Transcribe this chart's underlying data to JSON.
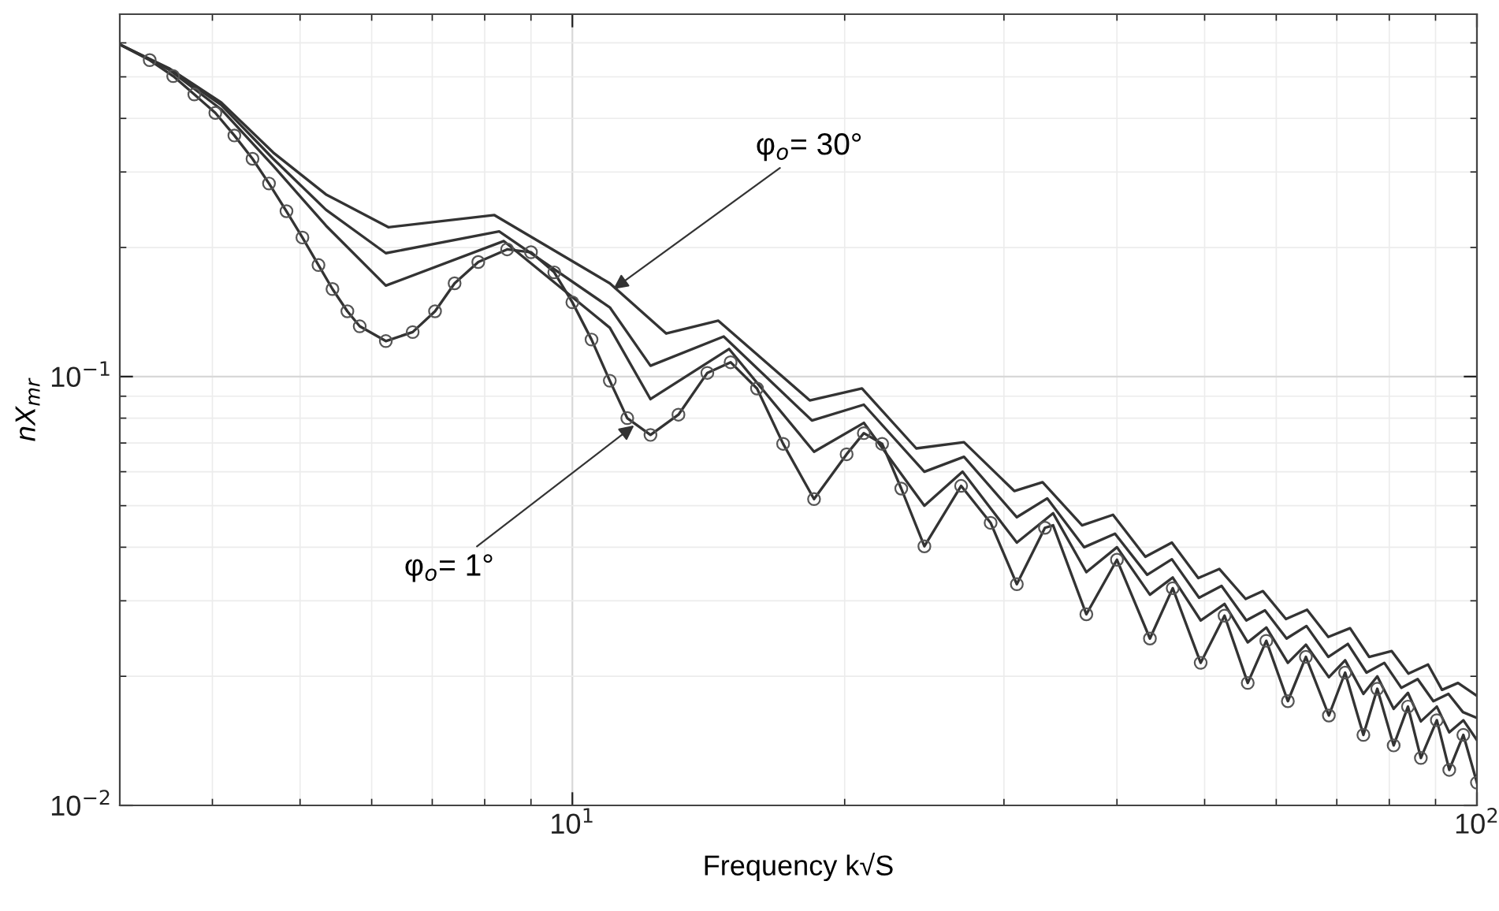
{
  "chart_data": {
    "type": "line",
    "xlabel": "Frequency k√S",
    "ylabel": "nX$_{mr}$",
    "log": "xy",
    "grid": true,
    "legend": false,
    "xlim": [
      3.16,
      100
    ],
    "ylim": [
      0.01,
      0.7
    ],
    "xticks": [
      {
        "value": 10,
        "label": "10$^{1}$"
      },
      {
        "value": 100,
        "label": "10$^{2}$"
      }
    ],
    "yticks": [
      {
        "value": 0.01,
        "label": "10$^{−2}$"
      },
      {
        "value": 0.1,
        "label": "10$^{−1}$"
      }
    ],
    "series": [
      {
        "color": "#333333",
        "marker": "none",
        "x": [
          3.16,
          3.58,
          4.09,
          4.67,
          5.34,
          6.26,
          8.2,
          11.0,
          12.7,
          14.5,
          18.3,
          20.9,
          24.0,
          27.1,
          30.8,
          33.1,
          36.6,
          39.6,
          43.0,
          46.0,
          49.2,
          51.9,
          55.5,
          58.0,
          61.5,
          64.9,
          68.5,
          72.4,
          76.0,
          80.5,
          84.0,
          88.3,
          91.5,
          95.3,
          100
        ],
        "values": [
          0.595,
          0.524,
          0.436,
          0.333,
          0.266,
          0.223,
          0.238,
          0.165,
          0.126,
          0.135,
          0.088,
          0.0938,
          0.068,
          0.0703,
          0.0541,
          0.0567,
          0.045,
          0.0476,
          0.038,
          0.041,
          0.0339,
          0.0356,
          0.0303,
          0.0316,
          0.0272,
          0.0286,
          0.0247,
          0.0259,
          0.0222,
          0.0229,
          0.0203,
          0.0213,
          0.0186,
          0.0193,
          0.018
        ]
      },
      {
        "color": "#333333",
        "marker": "none",
        "x": [
          3.16,
          3.58,
          4.09,
          4.67,
          5.34,
          6.22,
          8.3,
          11.0,
          12.2,
          14.7,
          18.4,
          21.0,
          24.5,
          27.1,
          31.0,
          33.5,
          36.8,
          39.8,
          43.2,
          46.0,
          49.3,
          52.2,
          55.6,
          58.3,
          61.6,
          64.8,
          68.5,
          72.0,
          75.5,
          79.0,
          82.5,
          86.0,
          89.5,
          93.0,
          96.5,
          100
        ],
        "values": [
          0.595,
          0.522,
          0.43,
          0.322,
          0.245,
          0.194,
          0.218,
          0.145,
          0.106,
          0.124,
          0.079,
          0.086,
          0.06,
          0.065,
          0.047,
          0.052,
          0.04,
          0.043,
          0.0345,
          0.0375,
          0.0305,
          0.0325,
          0.027,
          0.0285,
          0.0245,
          0.0262,
          0.0222,
          0.0238,
          0.0204,
          0.0215,
          0.0188,
          0.0197,
          0.0175,
          0.0182,
          0.0165,
          0.016
        ]
      },
      {
        "color": "#333333",
        "marker": "none",
        "x": [
          3.16,
          3.58,
          4.09,
          4.67,
          5.34,
          6.22,
          8.4,
          11.0,
          12.2,
          14.9,
          18.5,
          21.0,
          24.5,
          27.0,
          31.0,
          34.0,
          37.0,
          40.0,
          43.5,
          46.1,
          49.5,
          52.6,
          55.8,
          58.5,
          61.8,
          64.7,
          68.6,
          71.5,
          74.9,
          77.6,
          80.9,
          83.9,
          86.7,
          90.3,
          93.2,
          96.6,
          100
        ],
        "values": [
          0.595,
          0.52,
          0.42,
          0.31,
          0.225,
          0.163,
          0.207,
          0.13,
          0.0886,
          0.116,
          0.0668,
          0.078,
          0.05,
          0.06,
          0.041,
          0.048,
          0.035,
          0.04,
          0.031,
          0.034,
          0.027,
          0.0295,
          0.024,
          0.026,
          0.0215,
          0.0237,
          0.0199,
          0.0218,
          0.0182,
          0.02,
          0.0168,
          0.0183,
          0.0157,
          0.017,
          0.0148,
          0.0158,
          0.0142
        ]
      },
      {
        "color": "#333333",
        "marker": "none",
        "x": [
          3.16,
          3.41,
          3.62,
          3.82,
          4.03,
          4.23,
          4.43,
          4.62,
          4.83,
          5.03,
          5.24,
          5.43,
          5.64,
          5.82,
          6.22,
          6.66,
          7.05,
          7.41,
          7.87,
          8.47,
          9.0,
          9.55,
          10.0,
          10.5,
          11.0,
          11.5,
          12.2,
          13.1,
          14.1,
          14.96,
          16.0,
          17.1,
          18.5,
          20.1,
          21.0,
          22.0,
          23.1,
          24.5,
          26.9,
          29.0,
          31.0,
          33.3,
          34.0,
          37.0,
          40.0,
          43.5,
          46.1,
          49.5,
          52.6,
          55.8,
          58.5,
          61.8,
          64.7,
          68.6,
          71.5,
          74.9,
          77.6,
          80.9,
          83.9,
          86.7,
          90.3,
          93.2,
          96.6,
          100
        ],
        "values": [
          0.595,
          0.547,
          0.502,
          0.455,
          0.412,
          0.365,
          0.322,
          0.282,
          0.243,
          0.211,
          0.182,
          0.16,
          0.142,
          0.131,
          0.121,
          0.127,
          0.142,
          0.165,
          0.185,
          0.198,
          0.195,
          0.175,
          0.149,
          0.122,
          0.0978,
          0.08,
          0.0731,
          0.0815,
          0.102,
          0.108,
          0.0938,
          0.0697,
          0.0518,
          0.0659,
          0.0738,
          0.0697,
          0.0548,
          0.0402,
          0.0556,
          0.0456,
          0.0328,
          0.0444,
          0.045,
          0.0279,
          0.0374,
          0.0245,
          0.0321,
          0.0215,
          0.0277,
          0.0193,
          0.0242,
          0.0175,
          0.0222,
          0.0162,
          0.0204,
          0.0146,
          0.0187,
          0.0138,
          0.017,
          0.0129,
          0.0158,
          0.0121,
          0.0146,
          0.0113
        ]
      },
      {
        "type": "scatter",
        "color": "#555555",
        "marker": "circle",
        "x": [
          3.41,
          3.62,
          3.82,
          4.03,
          4.23,
          4.43,
          4.62,
          4.83,
          5.03,
          5.24,
          5.43,
          5.64,
          5.82,
          6.22,
          6.66,
          7.05,
          7.41,
          7.87,
          8.47,
          9.0,
          9.55,
          10.0,
          10.5,
          11.0,
          11.5,
          12.2,
          13.1,
          14.1,
          14.96,
          16.0,
          17.1,
          18.5,
          20.1,
          21.0,
          22.0,
          23.1,
          24.5,
          26.9,
          29.0,
          31.0,
          33.3,
          37.0,
          40.0,
          43.5,
          46.1,
          49.5,
          52.6,
          55.8,
          58.5,
          61.8,
          64.7,
          68.6,
          71.5,
          74.9,
          77.6,
          80.9,
          83.9,
          86.7,
          90.3,
          93.2,
          96.6,
          100
        ],
        "values": [
          0.547,
          0.502,
          0.455,
          0.412,
          0.365,
          0.322,
          0.282,
          0.243,
          0.211,
          0.182,
          0.16,
          0.142,
          0.131,
          0.121,
          0.127,
          0.142,
          0.165,
          0.185,
          0.198,
          0.195,
          0.175,
          0.149,
          0.122,
          0.0978,
          0.08,
          0.0731,
          0.0815,
          0.102,
          0.108,
          0.0938,
          0.0697,
          0.0518,
          0.0659,
          0.0738,
          0.0697,
          0.0548,
          0.0402,
          0.0556,
          0.0456,
          0.0328,
          0.0444,
          0.0279,
          0.0374,
          0.0245,
          0.0321,
          0.0215,
          0.0277,
          0.0193,
          0.0242,
          0.0175,
          0.0222,
          0.0162,
          0.0204,
          0.0146,
          0.0187,
          0.0138,
          0.017,
          0.0129,
          0.0158,
          0.0121,
          0.0146,
          0.0113
        ]
      }
    ],
    "annotations": [
      {
        "text": "φ$_{o}$= 30°",
        "x": 11.1,
        "y": 0.16
      },
      {
        "text": "φ$_{o}$= 1°",
        "x": 11.7,
        "y": 0.0769
      }
    ]
  }
}
